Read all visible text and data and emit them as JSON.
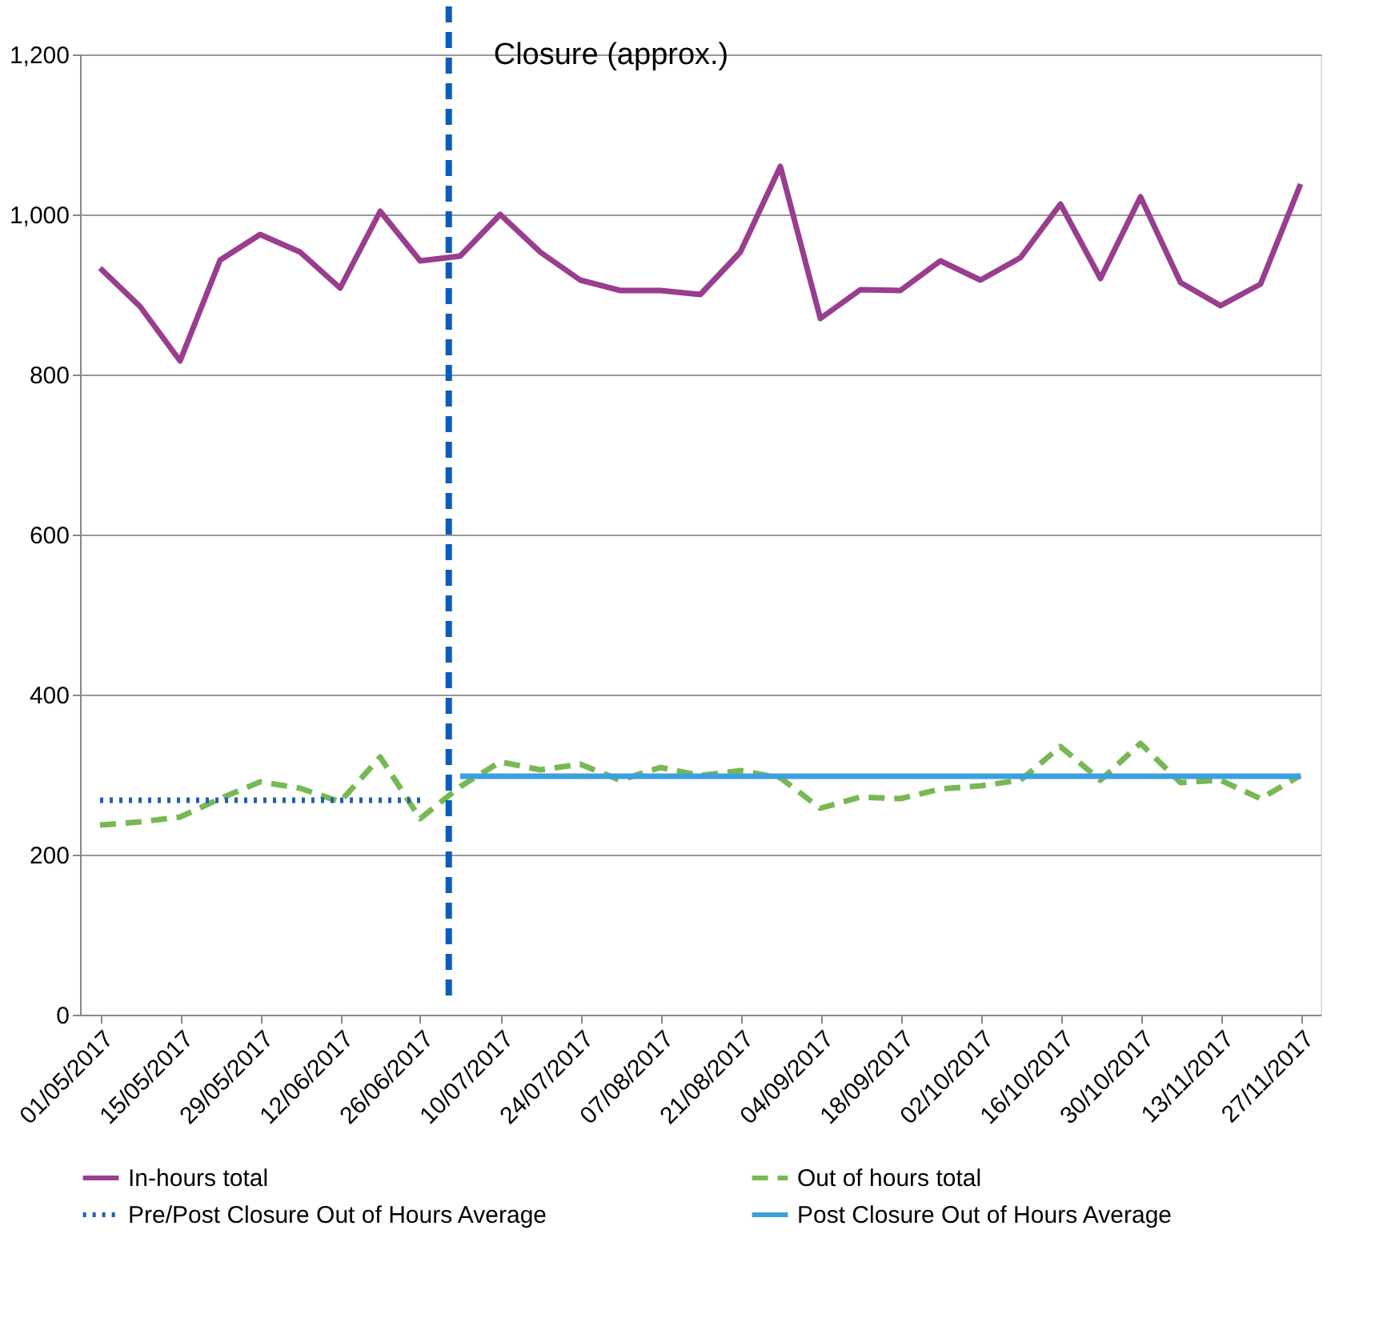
{
  "chart_data": {
    "type": "line",
    "x": [
      "2017-05-01",
      "2017-05-08",
      "2017-05-15",
      "2017-05-22",
      "2017-05-29",
      "2017-06-05",
      "2017-06-12",
      "2017-06-19",
      "2017-06-26",
      "2017-07-03",
      "2017-07-10",
      "2017-07-17",
      "2017-07-24",
      "2017-07-31",
      "2017-08-07",
      "2017-08-14",
      "2017-08-21",
      "2017-08-28",
      "2017-09-04",
      "2017-09-11",
      "2017-09-18",
      "2017-09-25",
      "2017-10-02",
      "2017-10-09",
      "2017-10-16",
      "2017-10-23",
      "2017-10-30",
      "2017-11-06",
      "2017-11-13",
      "2017-11-20",
      "2017-11-27"
    ],
    "series": [
      {
        "name": "In-hours total",
        "color": "#993d8f",
        "line_style": "solid",
        "values": [
          933,
          885,
          817,
          943,
          975,
          953,
          908,
          1004,
          942,
          948,
          1000,
          953,
          918,
          905,
          905,
          900,
          953,
          1060,
          870,
          906,
          905,
          942,
          918,
          946,
          1013,
          920,
          1022,
          915,
          886,
          913,
          1038
        ]
      },
      {
        "name": "Out of hours total",
        "color": "#77b853",
        "line_style": "dashed",
        "values": [
          237,
          241,
          247,
          270,
          291,
          283,
          266,
          322,
          245,
          285,
          316,
          306,
          313,
          293,
          309,
          299,
          305,
          296,
          258,
          272,
          270,
          282,
          286,
          293,
          335,
          293,
          339,
          290,
          293,
          270,
          299
        ]
      },
      {
        "name": "Pre/Post Closure Out of Hours Average",
        "color": "#1f5fb5",
        "line_style": "dotted",
        "x": [
          "2017-05-01",
          "2017-06-26"
        ],
        "values": [
          268,
          268
        ]
      },
      {
        "name": "Post Closure Out of Hours Average",
        "color": "#3ca0dc",
        "line_style": "solid",
        "x": [
          "2017-07-03",
          "2017-11-27"
        ],
        "values": [
          298,
          298
        ]
      }
    ],
    "xlim": [
      "2017-04-27T12:00",
      "2017-11-30T12:00"
    ],
    "xticks": [
      {
        "value": "2017-05-01",
        "label": "01/05/2017"
      },
      {
        "value": "2017-05-15",
        "label": "15/05/2017"
      },
      {
        "value": "2017-05-29",
        "label": "29/05/2017"
      },
      {
        "value": "2017-06-12",
        "label": "12/06/2017"
      },
      {
        "value": "2017-06-26",
        "label": "26/06/2017"
      },
      {
        "value": "2017-07-10",
        "label": "10/07/2017"
      },
      {
        "value": "2017-07-24",
        "label": "24/07/2017"
      },
      {
        "value": "2017-08-07",
        "label": "07/08/2017"
      },
      {
        "value": "2017-08-21",
        "label": "21/08/2017"
      },
      {
        "value": "2017-09-04",
        "label": "04/09/2017"
      },
      {
        "value": "2017-09-18",
        "label": "18/09/2017"
      },
      {
        "value": "2017-10-02",
        "label": "02/10/2017"
      },
      {
        "value": "2017-10-16",
        "label": "16/10/2017"
      },
      {
        "value": "2017-10-30",
        "label": "30/10/2017"
      },
      {
        "value": "2017-11-13",
        "label": "13/11/2017"
      },
      {
        "value": "2017-11-27",
        "label": "27/11/2017"
      }
    ],
    "yticks": [
      0,
      {
        "value": 200,
        "label": "200"
      },
      {
        "value": 400,
        "label": "400"
      },
      {
        "value": 600,
        "label": "600"
      },
      {
        "value": 800,
        "label": "800"
      },
      {
        "value": 1000,
        "label": "1,000"
      },
      {
        "value": 1200,
        "label": "1,200"
      }
    ],
    "ylim": [
      0,
      1200
    ],
    "ref_lines": [
      {
        "axis": "x",
        "value": "2017-07-01",
        "label": "Closure (approx.)",
        "color": "#0a5cbf",
        "line_style": "dashed"
      }
    ],
    "grid": "y",
    "legend": "bottom"
  }
}
